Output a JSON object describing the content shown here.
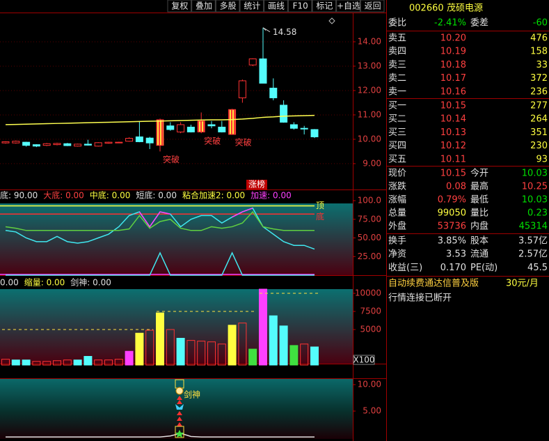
{
  "toolbar": [
    "复权",
    "叠加",
    "多股",
    "统计",
    "画线",
    "F10",
    "标记",
    "+自选",
    "返回"
  ],
  "quote": {
    "code": "002660",
    "name": "茂硕电源",
    "ratio": {
      "label": "委比",
      "value": "-2.41%",
      "label2": "委差",
      "value2": "-60",
      "color": "#00e000"
    },
    "asks": [
      {
        "label": "卖五",
        "price": "10.20",
        "volume": "476"
      },
      {
        "label": "卖四",
        "price": "10.19",
        "volume": "158"
      },
      {
        "label": "卖三",
        "price": "10.18",
        "volume": "33"
      },
      {
        "label": "卖二",
        "price": "10.17",
        "volume": "372"
      },
      {
        "label": "卖一",
        "price": "10.16",
        "volume": "236"
      }
    ],
    "bids": [
      {
        "label": "买一",
        "price": "10.15",
        "volume": "277"
      },
      {
        "label": "买二",
        "price": "10.14",
        "volume": "264"
      },
      {
        "label": "买三",
        "price": "10.13",
        "volume": "351"
      },
      {
        "label": "买四",
        "price": "10.12",
        "volume": "230"
      },
      {
        "label": "买五",
        "price": "10.11",
        "volume": "93"
      }
    ],
    "price_color": "#ff4040",
    "volume_color": "#ffff40",
    "stats": [
      {
        "label": "现价",
        "value": "10.15",
        "color": "#ff4040",
        "label2": "今开",
        "value2": "10.03",
        "color2": "#00e000"
      },
      {
        "label": "涨跌",
        "value": "0.08",
        "color": "#ff4040",
        "label2": "最高",
        "value2": "10.25",
        "color2": "#ff4040"
      },
      {
        "label": "涨幅",
        "value": "0.79%",
        "color": "#ff4040",
        "label2": "最低",
        "value2": "10.03",
        "color2": "#00e000"
      },
      {
        "label": "总量",
        "value": "99050",
        "color": "#ffff40",
        "label2": "量比",
        "value2": "0.23",
        "color2": "#00e000"
      },
      {
        "label": "外盘",
        "value": "53736",
        "color": "#ff4040",
        "label2": "内盘",
        "value2": "45314",
        "color2": "#00e000"
      },
      {
        "label": "换手",
        "value": "3.85%",
        "color": "#e0e0e0",
        "label2": "股本",
        "value2": "3.57亿",
        "color2": "#e0e0e0"
      },
      {
        "label": "净资",
        "value": "3.53",
        "color": "#e0e0e0",
        "label2": "流通",
        "value2": "2.57亿",
        "color2": "#e0e0e0"
      },
      {
        "label": "收益(三)",
        "value": "0.170",
        "color": "#e0e0e0",
        "label2": "PE(动)",
        "value2": "45.5",
        "color2": "#e0e0e0"
      }
    ],
    "ad": {
      "text": "自动续费通达信普及版",
      "price": "30元/月"
    },
    "status": "行情连接已断开"
  },
  "chart_data": [
    {
      "type": "candlestick",
      "up_color": "#ff3232",
      "down_color": "#54fcfc",
      "open": [
        9.85,
        9.85,
        9.88,
        9.78,
        9.75,
        9.78,
        9.82,
        9.72,
        9.8,
        9.72,
        9.84,
        9.85,
        9.92,
        10.1,
        10.05,
        9.75,
        10.55,
        10.3,
        10.5,
        10.3,
        10.6,
        10.5,
        10.2,
        11.7,
        13.05,
        13.3,
        12.1,
        11.4,
        10.6,
        10.45,
        10.4
      ],
      "close": [
        9.9,
        9.92,
        9.75,
        9.72,
        9.82,
        9.83,
        9.74,
        9.8,
        9.76,
        9.86,
        9.88,
        9.88,
        10.04,
        9.9,
        9.85,
        10.8,
        10.4,
        10.6,
        10.3,
        10.75,
        10.55,
        10.3,
        11.22,
        12.4,
        13.3,
        12.3,
        11.7,
        10.7,
        10.45,
        10.42,
        10.1
      ],
      "high": [
        9.92,
        9.95,
        9.9,
        9.8,
        9.85,
        9.86,
        9.85,
        9.82,
        9.98,
        9.88,
        9.9,
        9.9,
        10.08,
        10.75,
        10.1,
        10.85,
        10.7,
        10.7,
        10.6,
        11.1,
        10.75,
        10.75,
        11.25,
        12.45,
        13.32,
        14.58,
        12.5,
        11.6,
        10.7,
        10.55,
        10.42
      ],
      "low": [
        9.82,
        9.82,
        9.7,
        9.68,
        9.72,
        9.75,
        9.72,
        9.7,
        9.74,
        9.7,
        9.82,
        9.84,
        9.9,
        9.88,
        9.6,
        9.5,
        10.35,
        10.25,
        10.28,
        10.25,
        10.45,
        10.28,
        10.2,
        11.5,
        13.0,
        12.3,
        11.6,
        10.68,
        10.4,
        10.2,
        10.05
      ],
      "ma": {
        "color": "#ffff50",
        "values": [
          10.6,
          10.61,
          10.62,
          10.63,
          10.64,
          10.65,
          10.66,
          10.67,
          10.68,
          10.69,
          10.7,
          10.71,
          10.72,
          10.73,
          10.74,
          10.75,
          10.76,
          10.77,
          10.78,
          10.79,
          10.8,
          10.8,
          10.81,
          10.83,
          10.86,
          10.9,
          10.92,
          10.95,
          10.96,
          10.97,
          10.98
        ]
      },
      "high_label": "14.58",
      "annotation": "突破",
      "badge": "涨榜",
      "ylim": [
        7.94,
        15.2
      ],
      "yticks": [
        {
          "value": 9,
          "label": "9.00"
        },
        {
          "value": 10,
          "label": "10.00"
        },
        {
          "value": 11,
          "label": "11.00"
        },
        {
          "value": 12,
          "label": "12.00"
        },
        {
          "value": 13,
          "label": "13.00"
        },
        {
          "value": 14,
          "label": "14.00"
        }
      ],
      "grid": true
    },
    {
      "type": "line",
      "header": [
        {
          "text": "底: 90.00",
          "color": "#e0e0e0"
        },
        {
          "text": "大底: 0.00",
          "color": "#ff4040"
        },
        {
          "text": "中底: 0.00",
          "color": "#ffff40"
        },
        {
          "text": "短底: 0.00",
          "color": "#e0e0e0"
        },
        {
          "text": "粘合加速2: 0.00",
          "color": "#ffff40"
        },
        {
          "text": "加速: 0.00",
          "color": "#ff40ff"
        }
      ],
      "series": [
        {
          "color": "#40e8f0",
          "values": [
            60,
            58,
            50,
            45,
            45,
            52,
            45,
            43,
            45,
            50,
            55,
            65,
            80,
            85,
            65,
            85,
            82,
            65,
            75,
            80,
            80,
            70,
            78,
            85,
            90,
            65,
            55,
            45,
            40,
            40,
            35
          ]
        },
        {
          "color": "#60d040",
          "values": [
            65,
            63,
            60,
            60,
            60,
            60,
            60,
            60,
            60,
            60,
            60,
            60,
            62,
            80,
            63,
            72,
            75,
            63,
            60,
            60,
            65,
            63,
            65,
            70,
            85,
            65,
            62,
            60,
            60,
            60,
            60
          ]
        },
        {
          "color": "#ff40ff",
          "values": [
            null,
            null,
            null,
            null,
            null,
            null,
            null,
            null,
            null,
            null,
            null,
            null,
            null,
            85,
            65,
            85,
            82,
            null,
            null,
            null,
            null,
            null,
            78,
            85,
            90,
            null,
            null,
            null,
            null,
            null,
            null
          ]
        },
        {
          "color": "#40e8f0",
          "values": [
            0,
            0,
            0,
            0,
            0,
            0,
            0,
            0,
            0,
            0,
            0,
            0,
            0,
            0,
            0,
            30,
            0,
            0,
            0,
            0,
            0,
            0,
            30,
            0,
            0,
            0,
            0,
            0,
            0,
            0,
            0
          ]
        }
      ],
      "reference_lines": [
        {
          "value": 93,
          "color": "#ffff40"
        },
        {
          "value": 82,
          "color": "#ff3030"
        },
        {
          "value": 1,
          "color": "#ff40ff"
        }
      ],
      "top_label": "顶",
      "bottom_label": "底",
      "ylim": [
        0,
        100
      ],
      "yticks": [
        {
          "value": 25,
          "label": "25.00"
        },
        {
          "value": 50,
          "label": "50.00"
        },
        {
          "value": 75,
          "label": "75.00"
        },
        {
          "value": 100,
          "label": "100.0"
        }
      ]
    },
    {
      "type": "bar",
      "header": [
        {
          "text": "0.00",
          "color": "#e0e0e0"
        },
        {
          "text": "缩量: 0.00",
          "color": "#ffff40"
        },
        {
          "text": "剑神: 0.00",
          "color": "#e0e0e0"
        }
      ],
      "values": [
        900,
        800,
        800,
        600,
        600,
        700,
        800,
        800,
        1300,
        800,
        800,
        900,
        2000,
        4500,
        4900,
        7300,
        5000,
        3800,
        3500,
        3400,
        3300,
        3000,
        5600,
        5900,
        2300,
        10580,
        6900,
        5500,
        2800,
        3000,
        2600
      ],
      "colors": [
        "#ff3232",
        "#54fcfc",
        "#54fcfc",
        "#ff3232",
        "#ff3232",
        "#ff3232",
        "#ff3232",
        "#54fcfc",
        "#54fcfc",
        "#ff3232",
        "#ff3232",
        "#ff3232",
        "#ff40ff",
        "#ffff40",
        "#ff3232",
        "#ffff40",
        "#ff3232",
        "#54fcfc",
        "#ff3232",
        "#ff3232",
        "#ff3232",
        "#ff3232",
        "#ffff40",
        "#ff3232",
        "#40e040",
        "#ff40ff",
        "#54fcfc",
        "#54fcfc",
        "#40e040",
        "#ff3232",
        "#54fcfc"
      ],
      "hollow_color": "#ff3232",
      "levels": [
        {
          "value": 5000,
          "start": 0,
          "end": 14
        },
        {
          "value": 7500,
          "start": 15,
          "end": 24
        },
        {
          "value": 10000,
          "start": 25,
          "end": 30
        }
      ],
      "unit_label": "X100",
      "ylim": [
        0,
        10580
      ],
      "yticks": [
        5000,
        7500,
        10000
      ]
    },
    {
      "type": "line",
      "label": "剑神",
      "series": [
        {
          "color": "#e0e0e0",
          "values": [
            0.1,
            0.1,
            0.1,
            0.1,
            0.1,
            0.1,
            0.1,
            0.1,
            0.1,
            0.1,
            0.1,
            0.1,
            0.1,
            0.1,
            0.1,
            0.1,
            0.3,
            0.8,
            0.2,
            0.1,
            0.1,
            0.1,
            0.1,
            0.1,
            0.1,
            0.1,
            0.1,
            0.1,
            0.1,
            0.1,
            0.1
          ]
        }
      ],
      "ylim": [
        0,
        11.2
      ],
      "yticks": [
        {
          "value": 5,
          "label": "5.00"
        },
        {
          "value": 10,
          "label": "10.00"
        }
      ]
    }
  ]
}
